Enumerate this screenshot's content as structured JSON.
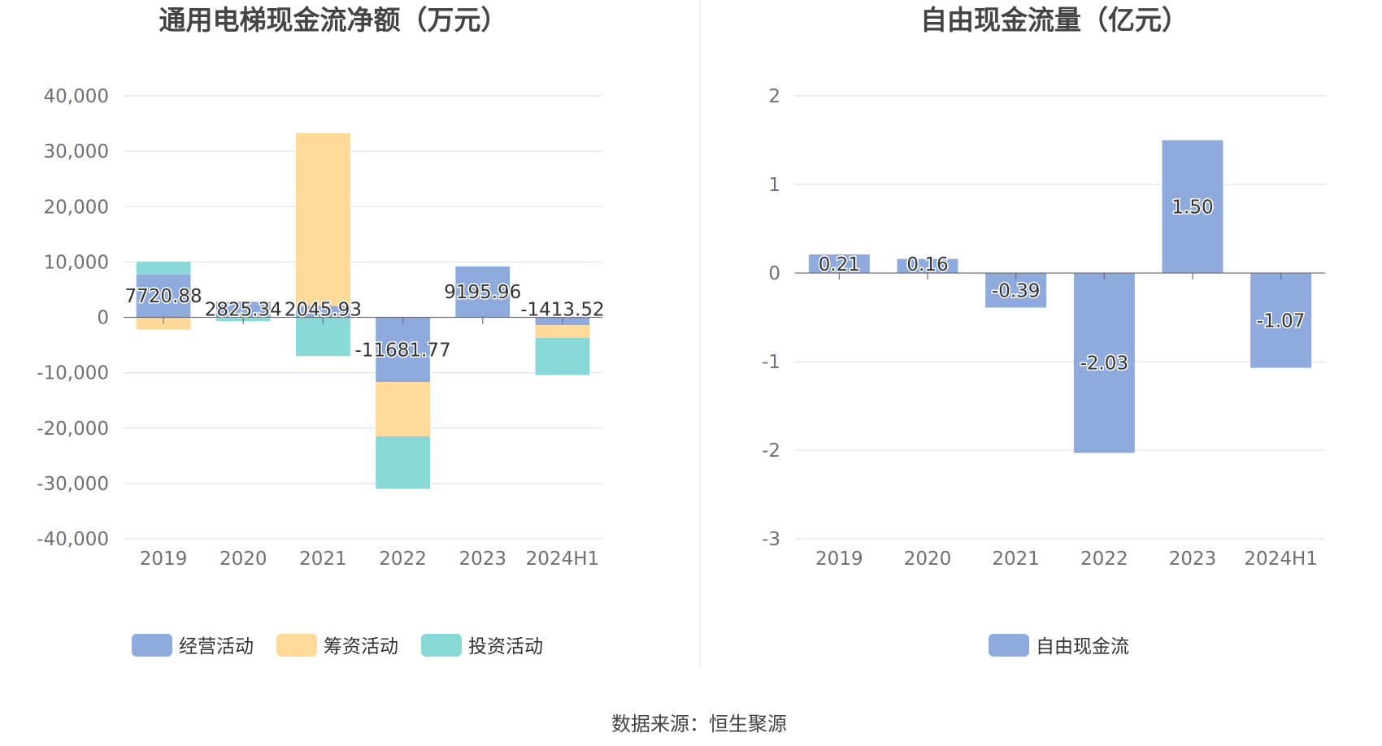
{
  "source": "数据来源：恒生聚源",
  "chart_data": [
    {
      "type": "bar",
      "stacked": true,
      "title": "通用电梯现金流净额（万元）",
      "categories": [
        "2019",
        "2020",
        "2021",
        "2022",
        "2023",
        "2024H1"
      ],
      "ylim": [
        -40000,
        40000
      ],
      "yticks": [
        "40,000",
        "30,000",
        "20,000",
        "10,000",
        "0",
        "-10,000",
        "-20,000",
        "-30,000",
        "-40,000"
      ],
      "grid": true,
      "legend_position": "bottom",
      "series": [
        {
          "name": "经营活动",
          "color": "#8faadc",
          "values": [
            7720.88,
            2825.34,
            2045.93,
            -11681.77,
            9195.96,
            -1413.52
          ]
        },
        {
          "name": "筹资活动",
          "color": "#ffd99a",
          "values": [
            -2200,
            -200,
            31200,
            -9800,
            0,
            -2300
          ]
        },
        {
          "name": "投资活动",
          "color": "#88d8d8",
          "values": [
            2300,
            -500,
            -7000,
            -9500,
            0,
            -6700
          ]
        }
      ],
      "data_labels": [
        "7720.88",
        "2825.34",
        "2045.93",
        "-11681.77",
        "9195.96",
        "-1413.52"
      ]
    },
    {
      "type": "bar",
      "title": "自由现金流量（亿元）",
      "categories": [
        "2019",
        "2020",
        "2021",
        "2022",
        "2023",
        "2024H1"
      ],
      "ylim": [
        -3,
        2
      ],
      "yticks": [
        "2",
        "1",
        "0",
        "-1",
        "-2",
        "-3"
      ],
      "grid": true,
      "legend_position": "bottom",
      "series": [
        {
          "name": "自由现金流",
          "color": "#8faadc",
          "values": [
            0.21,
            0.16,
            -0.39,
            -2.03,
            1.5,
            -1.07
          ]
        }
      ],
      "data_labels": [
        "0.21",
        "0.16",
        "-0.39",
        "-2.03",
        "1.50",
        "-1.07"
      ]
    }
  ]
}
